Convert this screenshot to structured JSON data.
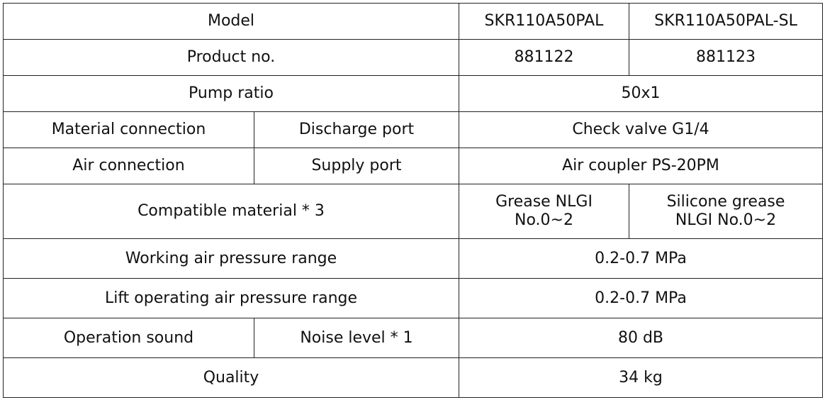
{
  "table": {
    "rows": [
      [
        "Model",
        "SKR110A50PAL",
        "SKR110A50PAL-SL"
      ],
      [
        "Product no.",
        "881122",
        "881123"
      ],
      [
        "Pump ratio",
        "50x1"
      ],
      [
        "Material connection",
        "Discharge port",
        "Check valve G1/4"
      ],
      [
        "Air connection",
        "Supply port",
        "Air coupler PS-20PM"
      ],
      [
        "Compatible material * 3",
        [
          "Grease NLGI",
          "No.0~2"
        ],
        [
          "Silicone grease",
          "NLGI No.0~2"
        ]
      ],
      [
        "Working air pressure range",
        "0.2-0.7 MPa"
      ],
      [
        "Lift operating air pressure range",
        "0.2-0.7 MPa"
      ],
      [
        "Operation sound",
        "Noise level * 1",
        "80 dB"
      ],
      [
        "Quality",
        "34 kg"
      ]
    ]
  }
}
